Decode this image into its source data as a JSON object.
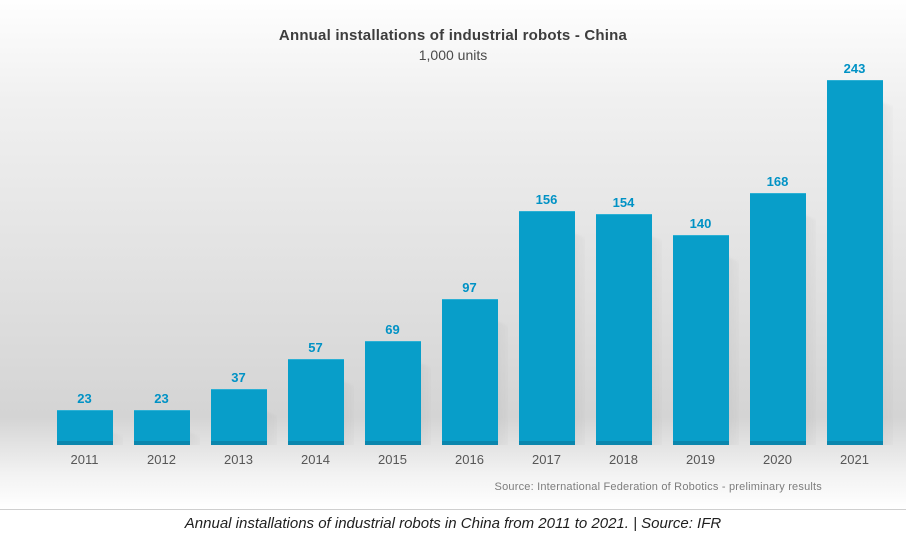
{
  "chart_data": {
    "type": "bar",
    "title": "Annual installations of industrial robots - China",
    "subtitle": "1,000 units",
    "categories": [
      "2011",
      "2012",
      "2013",
      "2014",
      "2015",
      "2016",
      "2017",
      "2018",
      "2019",
      "2020",
      "2021"
    ],
    "values": [
      23,
      23,
      37,
      57,
      69,
      97,
      156,
      154,
      140,
      168,
      243
    ],
    "ylim": [
      0,
      260
    ],
    "xlabel": "",
    "ylabel": "",
    "grid": false,
    "legend": false,
    "bar_color": "#089ec9",
    "bar_edge_color": "#0a86ad",
    "value_label_color": "#0092c5",
    "source_note": "Source: International Federation of Robotics - preliminary results"
  },
  "caption": {
    "text": "Annual installations of industrial robots in China from 2011 to 2021. | Source: IFR"
  }
}
